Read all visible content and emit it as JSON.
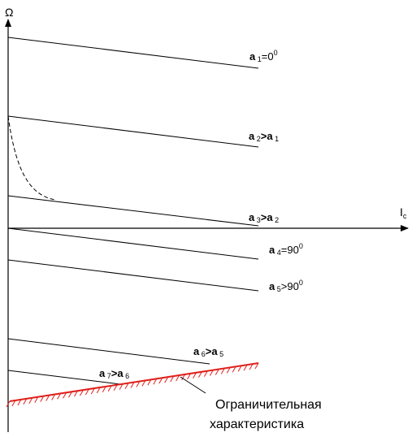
{
  "axes": {
    "y_label": "Ω",
    "x_label": "I",
    "x_label_sub": "c"
  },
  "lines": [
    {
      "var": "a",
      "sub": "1",
      "rel": "=0",
      "sup": "0",
      "rhs": "",
      "rhs_sub": "",
      "bold": true,
      "rel_bold": false
    },
    {
      "var": "a",
      "sub": "2",
      "rel": ">",
      "sup": "",
      "rhs": "a",
      "rhs_sub": "1",
      "bold": true,
      "rel_bold": true
    },
    {
      "var": "a",
      "sub": "3",
      "rel": ">",
      "sup": "",
      "rhs": "a",
      "rhs_sub": "2",
      "bold": true,
      "rel_bold": true
    },
    {
      "var": "a",
      "sub": "4",
      "rel": "=90",
      "sup": "0",
      "rhs": "",
      "rhs_sub": "",
      "bold": true,
      "rel_bold": false
    },
    {
      "var": "a",
      "sub": "5",
      "rel": ">90",
      "sup": "0",
      "rhs": "",
      "rhs_sub": "",
      "bold": true,
      "rel_bold": false
    },
    {
      "var": "a",
      "sub": "6",
      "rel": ">",
      "sup": "",
      "rhs": "a",
      "rhs_sub": "5",
      "bold": true,
      "rel_bold": true
    },
    {
      "var": "a",
      "sub": "7",
      "rel": ">",
      "sup": "",
      "rhs": "a",
      "rhs_sub": "6",
      "bold": true,
      "rel_bold": true
    }
  ],
  "limit": {
    "label_line1": "Ограничительная",
    "label_line2": "характеристика",
    "color": "#e0201b"
  }
}
